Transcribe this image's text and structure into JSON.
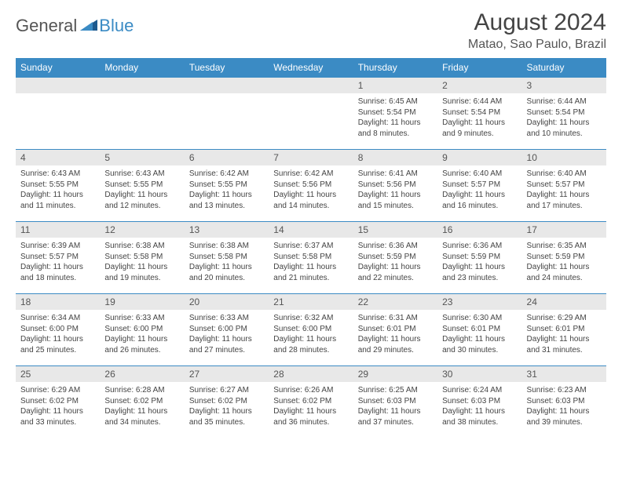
{
  "logo": {
    "part1": "General",
    "part2": "Blue"
  },
  "title": "August 2024",
  "location": "Matao, Sao Paulo, Brazil",
  "colors": {
    "header_bg": "#3b8bc4",
    "header_text": "#ffffff",
    "daynum_bg": "#e8e8e8",
    "border": "#3b8bc4",
    "body_text": "#444444"
  },
  "day_names": [
    "Sunday",
    "Monday",
    "Tuesday",
    "Wednesday",
    "Thursday",
    "Friday",
    "Saturday"
  ],
  "weeks": [
    [
      {
        "n": "",
        "sr": "",
        "ss": "",
        "dl": ""
      },
      {
        "n": "",
        "sr": "",
        "ss": "",
        "dl": ""
      },
      {
        "n": "",
        "sr": "",
        "ss": "",
        "dl": ""
      },
      {
        "n": "",
        "sr": "",
        "ss": "",
        "dl": ""
      },
      {
        "n": "1",
        "sr": "Sunrise: 6:45 AM",
        "ss": "Sunset: 5:54 PM",
        "dl": "Daylight: 11 hours and 8 minutes."
      },
      {
        "n": "2",
        "sr": "Sunrise: 6:44 AM",
        "ss": "Sunset: 5:54 PM",
        "dl": "Daylight: 11 hours and 9 minutes."
      },
      {
        "n": "3",
        "sr": "Sunrise: 6:44 AM",
        "ss": "Sunset: 5:54 PM",
        "dl": "Daylight: 11 hours and 10 minutes."
      }
    ],
    [
      {
        "n": "4",
        "sr": "Sunrise: 6:43 AM",
        "ss": "Sunset: 5:55 PM",
        "dl": "Daylight: 11 hours and 11 minutes."
      },
      {
        "n": "5",
        "sr": "Sunrise: 6:43 AM",
        "ss": "Sunset: 5:55 PM",
        "dl": "Daylight: 11 hours and 12 minutes."
      },
      {
        "n": "6",
        "sr": "Sunrise: 6:42 AM",
        "ss": "Sunset: 5:55 PM",
        "dl": "Daylight: 11 hours and 13 minutes."
      },
      {
        "n": "7",
        "sr": "Sunrise: 6:42 AM",
        "ss": "Sunset: 5:56 PM",
        "dl": "Daylight: 11 hours and 14 minutes."
      },
      {
        "n": "8",
        "sr": "Sunrise: 6:41 AM",
        "ss": "Sunset: 5:56 PM",
        "dl": "Daylight: 11 hours and 15 minutes."
      },
      {
        "n": "9",
        "sr": "Sunrise: 6:40 AM",
        "ss": "Sunset: 5:57 PM",
        "dl": "Daylight: 11 hours and 16 minutes."
      },
      {
        "n": "10",
        "sr": "Sunrise: 6:40 AM",
        "ss": "Sunset: 5:57 PM",
        "dl": "Daylight: 11 hours and 17 minutes."
      }
    ],
    [
      {
        "n": "11",
        "sr": "Sunrise: 6:39 AM",
        "ss": "Sunset: 5:57 PM",
        "dl": "Daylight: 11 hours and 18 minutes."
      },
      {
        "n": "12",
        "sr": "Sunrise: 6:38 AM",
        "ss": "Sunset: 5:58 PM",
        "dl": "Daylight: 11 hours and 19 minutes."
      },
      {
        "n": "13",
        "sr": "Sunrise: 6:38 AM",
        "ss": "Sunset: 5:58 PM",
        "dl": "Daylight: 11 hours and 20 minutes."
      },
      {
        "n": "14",
        "sr": "Sunrise: 6:37 AM",
        "ss": "Sunset: 5:58 PM",
        "dl": "Daylight: 11 hours and 21 minutes."
      },
      {
        "n": "15",
        "sr": "Sunrise: 6:36 AM",
        "ss": "Sunset: 5:59 PM",
        "dl": "Daylight: 11 hours and 22 minutes."
      },
      {
        "n": "16",
        "sr": "Sunrise: 6:36 AM",
        "ss": "Sunset: 5:59 PM",
        "dl": "Daylight: 11 hours and 23 minutes."
      },
      {
        "n": "17",
        "sr": "Sunrise: 6:35 AM",
        "ss": "Sunset: 5:59 PM",
        "dl": "Daylight: 11 hours and 24 minutes."
      }
    ],
    [
      {
        "n": "18",
        "sr": "Sunrise: 6:34 AM",
        "ss": "Sunset: 6:00 PM",
        "dl": "Daylight: 11 hours and 25 minutes."
      },
      {
        "n": "19",
        "sr": "Sunrise: 6:33 AM",
        "ss": "Sunset: 6:00 PM",
        "dl": "Daylight: 11 hours and 26 minutes."
      },
      {
        "n": "20",
        "sr": "Sunrise: 6:33 AM",
        "ss": "Sunset: 6:00 PM",
        "dl": "Daylight: 11 hours and 27 minutes."
      },
      {
        "n": "21",
        "sr": "Sunrise: 6:32 AM",
        "ss": "Sunset: 6:00 PM",
        "dl": "Daylight: 11 hours and 28 minutes."
      },
      {
        "n": "22",
        "sr": "Sunrise: 6:31 AM",
        "ss": "Sunset: 6:01 PM",
        "dl": "Daylight: 11 hours and 29 minutes."
      },
      {
        "n": "23",
        "sr": "Sunrise: 6:30 AM",
        "ss": "Sunset: 6:01 PM",
        "dl": "Daylight: 11 hours and 30 minutes."
      },
      {
        "n": "24",
        "sr": "Sunrise: 6:29 AM",
        "ss": "Sunset: 6:01 PM",
        "dl": "Daylight: 11 hours and 31 minutes."
      }
    ],
    [
      {
        "n": "25",
        "sr": "Sunrise: 6:29 AM",
        "ss": "Sunset: 6:02 PM",
        "dl": "Daylight: 11 hours and 33 minutes."
      },
      {
        "n": "26",
        "sr": "Sunrise: 6:28 AM",
        "ss": "Sunset: 6:02 PM",
        "dl": "Daylight: 11 hours and 34 minutes."
      },
      {
        "n": "27",
        "sr": "Sunrise: 6:27 AM",
        "ss": "Sunset: 6:02 PM",
        "dl": "Daylight: 11 hours and 35 minutes."
      },
      {
        "n": "28",
        "sr": "Sunrise: 6:26 AM",
        "ss": "Sunset: 6:02 PM",
        "dl": "Daylight: 11 hours and 36 minutes."
      },
      {
        "n": "29",
        "sr": "Sunrise: 6:25 AM",
        "ss": "Sunset: 6:03 PM",
        "dl": "Daylight: 11 hours and 37 minutes."
      },
      {
        "n": "30",
        "sr": "Sunrise: 6:24 AM",
        "ss": "Sunset: 6:03 PM",
        "dl": "Daylight: 11 hours and 38 minutes."
      },
      {
        "n": "31",
        "sr": "Sunrise: 6:23 AM",
        "ss": "Sunset: 6:03 PM",
        "dl": "Daylight: 11 hours and 39 minutes."
      }
    ]
  ]
}
